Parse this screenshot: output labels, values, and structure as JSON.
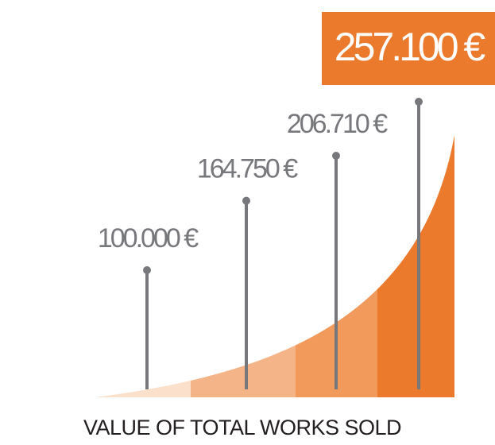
{
  "chart_data": {
    "type": "area",
    "title": "VALUE OF TOTAL WORKS SOLD",
    "values": [
      100000,
      164750,
      206710,
      257100
    ],
    "value_labels": [
      "100.000 €",
      "164.750 €",
      "206.710 €",
      "257.100 €"
    ],
    "colors": [
      "#fbe0cc",
      "#f5b487",
      "#f19a5b",
      "#eb7a2d"
    ],
    "highlight_color": "#eb7a2d",
    "pin_color": "#77787b"
  }
}
